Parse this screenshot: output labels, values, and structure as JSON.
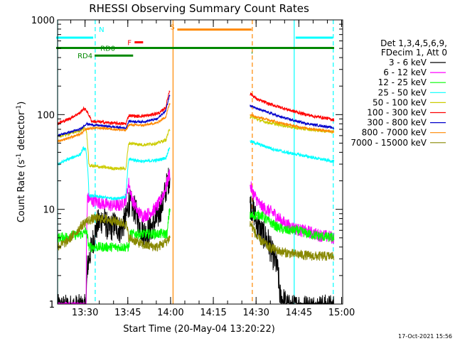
{
  "chart_data": {
    "type": "line",
    "title": "RHESSI Observing Summary Count Rates",
    "xlabel": "Start Time (20-May-04 13:20:22)",
    "ylabel": "Count Rate (s⁻¹ detector⁻¹)",
    "ylabel_main": "Count Rate (s",
    "ylabel_sup1": "-1",
    "ylabel_mid": " detector",
    "ylabel_sup2": "-1",
    "ylabel_end": ")",
    "x_axis": {
      "unit": "minutes since 13:20:22",
      "range": [
        0,
        100
      ],
      "ticks": [
        {
          "label": "13:30",
          "value": 9.63
        },
        {
          "label": "13:45",
          "value": 24.63
        },
        {
          "label": "14:00",
          "value": 39.63
        },
        {
          "label": "14:15",
          "value": 54.63
        },
        {
          "label": "14:30",
          "value": 69.63
        },
        {
          "label": "14:45",
          "value": 84.63
        },
        {
          "label": "15:00",
          "value": 99.63
        }
      ]
    },
    "y_axis": {
      "scale": "log",
      "range": [
        1,
        1000
      ],
      "ticks": [
        {
          "label": "1",
          "value": 1
        },
        {
          "label": "10",
          "value": 10
        },
        {
          "label": "100",
          "value": 100
        },
        {
          "label": "1000",
          "value": 1000
        }
      ]
    },
    "legend": {
      "placement": "right",
      "header": [
        "Det 1,3,4,5,6,9,",
        "FDecim 1, Att 0"
      ],
      "entries": [
        {
          "name": "3 - 6 keV",
          "color": "#000000"
        },
        {
          "name": "6 - 12 keV",
          "color": "#ff00ff"
        },
        {
          "name": "12 - 25 keV",
          "color": "#00ff00"
        },
        {
          "name": "25 - 50 keV",
          "color": "#00ffff"
        },
        {
          "name": "50 - 100 keV",
          "color": "#cccc00"
        },
        {
          "name": "100 - 300 keV",
          "color": "#ff0000"
        },
        {
          "name": "300 - 800 keV",
          "color": "#0000cc"
        },
        {
          "name": "800 - 7000 keV",
          "color": "#ff8800"
        },
        {
          "name": "7000 - 15000 keV",
          "color": "#888800"
        }
      ]
    },
    "segments": [
      [
        0,
        39.5
      ],
      [
        67.5,
        97
      ]
    ],
    "series": [
      {
        "name": "3 - 6 keV",
        "color": "#000000",
        "noise": 0.35,
        "points": [
          [
            0,
            0.9
          ],
          [
            10,
            0.9
          ],
          [
            10.5,
            2.5
          ],
          [
            12,
            4
          ],
          [
            14,
            7
          ],
          [
            16,
            8
          ],
          [
            18,
            6
          ],
          [
            20,
            7
          ],
          [
            22,
            6
          ],
          [
            24,
            8
          ],
          [
            25,
            12
          ],
          [
            27,
            10
          ],
          [
            29,
            6.5
          ],
          [
            31,
            5.5
          ],
          [
            33,
            6.5
          ],
          [
            35,
            8
          ],
          [
            37,
            12
          ],
          [
            39.3,
            22
          ],
          [
            67.8,
            11
          ],
          [
            69,
            9
          ],
          [
            70,
            7
          ],
          [
            71,
            6
          ],
          [
            73,
            5
          ],
          [
            74,
            4.5
          ],
          [
            75,
            3.5
          ],
          [
            77,
            2.5
          ],
          [
            78,
            1.2
          ],
          [
            81,
            0.9
          ],
          [
            97,
            0.9
          ]
        ]
      },
      {
        "name": "6 - 12 keV",
        "color": "#ff00ff",
        "noise": 0.16,
        "points": [
          [
            0,
            0.9
          ],
          [
            10,
            0.9
          ],
          [
            10.5,
            13
          ],
          [
            14,
            12
          ],
          [
            18,
            11
          ],
          [
            20,
            11
          ],
          [
            22,
            11
          ],
          [
            24,
            13
          ],
          [
            25,
            19
          ],
          [
            26,
            13
          ],
          [
            28,
            9.5
          ],
          [
            30,
            8.5
          ],
          [
            32,
            9
          ],
          [
            34,
            10
          ],
          [
            36,
            12
          ],
          [
            38,
            17
          ],
          [
            39.3,
            24
          ],
          [
            67.8,
            17
          ],
          [
            69,
            14
          ],
          [
            71,
            11
          ],
          [
            73,
            10
          ],
          [
            76,
            9
          ],
          [
            78,
            7.8
          ],
          [
            80,
            7
          ],
          [
            82,
            6.5
          ],
          [
            85,
            6
          ],
          [
            88,
            5.8
          ],
          [
            91,
            5.4
          ],
          [
            94,
            5.2
          ],
          [
            97,
            5
          ]
        ]
      },
      {
        "name": "12 - 25 keV",
        "color": "#00ff00",
        "noise": 0.12,
        "points": [
          [
            0,
            5
          ],
          [
            9,
            5.5
          ],
          [
            10,
            6
          ],
          [
            11,
            4
          ],
          [
            15,
            4
          ],
          [
            20,
            4
          ],
          [
            25,
            4
          ],
          [
            25.5,
            5.5
          ],
          [
            30,
            5.5
          ],
          [
            35,
            5.5
          ],
          [
            38.5,
            5.5
          ],
          [
            39.3,
            10
          ],
          [
            67.8,
            8.5
          ],
          [
            71,
            8.8
          ],
          [
            74,
            7.5
          ],
          [
            77,
            6.5
          ],
          [
            80,
            6
          ],
          [
            84,
            6
          ],
          [
            88,
            5.5
          ],
          [
            92,
            5.2
          ],
          [
            97,
            5
          ]
        ]
      },
      {
        "name": "25 - 50 keV",
        "color": "#00ffff",
        "noise": 0.04,
        "points": [
          [
            0,
            30
          ],
          [
            4,
            34
          ],
          [
            8,
            38
          ],
          [
            9,
            44
          ],
          [
            10,
            42
          ],
          [
            11,
            14
          ],
          [
            15,
            13.5
          ],
          [
            20,
            13
          ],
          [
            24,
            13.5
          ],
          [
            25,
            34
          ],
          [
            30,
            32
          ],
          [
            35,
            33
          ],
          [
            38,
            35
          ],
          [
            39.3,
            45
          ],
          [
            67.8,
            52
          ],
          [
            72,
            47
          ],
          [
            76,
            43
          ],
          [
            80,
            40
          ],
          [
            84,
            38
          ],
          [
            88,
            36
          ],
          [
            92,
            34
          ],
          [
            97,
            32
          ]
        ]
      },
      {
        "name": "50 - 100 keV",
        "color": "#cccc00",
        "noise": 0.04,
        "points": [
          [
            0,
            58
          ],
          [
            4,
            63
          ],
          [
            8,
            68
          ],
          [
            9,
            72
          ],
          [
            10,
            70
          ],
          [
            11,
            29
          ],
          [
            15,
            28
          ],
          [
            20,
            27
          ],
          [
            24,
            27
          ],
          [
            25,
            50
          ],
          [
            30,
            48
          ],
          [
            35,
            50
          ],
          [
            38,
            54
          ],
          [
            39.3,
            70
          ],
          [
            67.8,
            95
          ],
          [
            72,
            85
          ],
          [
            76,
            80
          ],
          [
            80,
            76
          ],
          [
            84,
            72
          ],
          [
            88,
            70
          ],
          [
            92,
            68
          ],
          [
            97,
            66
          ]
        ]
      },
      {
        "name": "100 - 300 keV",
        "color": "#ff0000",
        "noise": 0.04,
        "points": [
          [
            0,
            80
          ],
          [
            4,
            90
          ],
          [
            8,
            105
          ],
          [
            9,
            115
          ],
          [
            10,
            112
          ],
          [
            12,
            85
          ],
          [
            16,
            83
          ],
          [
            20,
            81
          ],
          [
            24,
            80
          ],
          [
            25,
            98
          ],
          [
            28,
            96
          ],
          [
            32,
            98
          ],
          [
            36,
            105
          ],
          [
            38,
            120
          ],
          [
            39.3,
            180
          ],
          [
            67.8,
            165
          ],
          [
            70,
            145
          ],
          [
            74,
            130
          ],
          [
            78,
            120
          ],
          [
            82,
            110
          ],
          [
            86,
            102
          ],
          [
            90,
            96
          ],
          [
            94,
            92
          ],
          [
            97,
            88
          ]
        ]
      },
      {
        "name": "300 - 800 keV",
        "color": "#0000cc",
        "noise": 0.03,
        "points": [
          [
            0,
            60
          ],
          [
            4,
            65
          ],
          [
            8,
            70
          ],
          [
            10,
            80
          ],
          [
            12,
            78
          ],
          [
            16,
            76
          ],
          [
            20,
            74
          ],
          [
            24,
            72
          ],
          [
            25,
            85
          ],
          [
            30,
            84
          ],
          [
            35,
            90
          ],
          [
            38,
            110
          ],
          [
            39.3,
            160
          ],
          [
            67.8,
            125
          ],
          [
            70,
            115
          ],
          [
            74,
            105
          ],
          [
            78,
            95
          ],
          [
            82,
            88
          ],
          [
            86,
            82
          ],
          [
            90,
            78
          ],
          [
            94,
            75
          ],
          [
            97,
            72
          ]
        ]
      },
      {
        "name": "800 - 7000 keV",
        "color": "#ff8800",
        "noise": 0.03,
        "points": [
          [
            0,
            52
          ],
          [
            4,
            57
          ],
          [
            8,
            62
          ],
          [
            10,
            70
          ],
          [
            12,
            72
          ],
          [
            16,
            72
          ],
          [
            20,
            70
          ],
          [
            24,
            68
          ],
          [
            25,
            78
          ],
          [
            30,
            77
          ],
          [
            35,
            82
          ],
          [
            38,
            95
          ],
          [
            39.3,
            130
          ],
          [
            67.8,
            100
          ],
          [
            70,
            95
          ],
          [
            74,
            88
          ],
          [
            78,
            82
          ],
          [
            82,
            77
          ],
          [
            86,
            73
          ],
          [
            90,
            70
          ],
          [
            94,
            68
          ],
          [
            97,
            66
          ]
        ]
      },
      {
        "name": "7000 - 15000 keV",
        "color": "#888800",
        "noise": 0.12,
        "points": [
          [
            0,
            4
          ],
          [
            3,
            4.5
          ],
          [
            6,
            5.5
          ],
          [
            8,
            6.5
          ],
          [
            10,
            7.5
          ],
          [
            13,
            8
          ],
          [
            16,
            8
          ],
          [
            20,
            7.5
          ],
          [
            24,
            7
          ],
          [
            25,
            5
          ],
          [
            30,
            4.2
          ],
          [
            35,
            4
          ],
          [
            38,
            4.5
          ],
          [
            39.3,
            5
          ],
          [
            67.8,
            7
          ],
          [
            70,
            5
          ],
          [
            74,
            4
          ],
          [
            78,
            3.6
          ],
          [
            82,
            3.4
          ],
          [
            86,
            3.3
          ],
          [
            90,
            3.2
          ],
          [
            94,
            3.2
          ],
          [
            97,
            3.2
          ]
        ]
      }
    ],
    "annotations": [
      {
        "label": "N",
        "color": "#00ffff",
        "bars": [
          [
            -0.5,
            12.5
          ],
          [
            83.5,
            96.5
          ]
        ],
        "bar_y": 650,
        "label_x": 14.5,
        "label_y": 800
      },
      {
        "label": "F",
        "color": "#ff0000",
        "bars": [
          [
            27,
            30
          ]
        ],
        "bar_y": 580,
        "label_x": 24.5,
        "label_y": 580
      },
      {
        "label": "RD0",
        "color": "#008800",
        "bars": [
          [
            -0.5,
            97
          ]
        ],
        "bar_y": 505,
        "label_x": 15,
        "label_y": 505
      },
      {
        "label": "RD4",
        "color": "#008800",
        "bars": [
          [
            13,
            26.5
          ]
        ],
        "bar_y": 420,
        "label_x": 7,
        "label_y": 420
      },
      {
        "label": "S",
        "color": "#ff8800",
        "bars": [
          [
            42,
            68
          ]
        ],
        "bar_y": 790,
        "label_x": 39.5,
        "label_y": 850
      }
    ],
    "vlines": [
      {
        "x": 0,
        "color": "#00ffff",
        "style": "solid"
      },
      {
        "x": 13.2,
        "color": "#00ffff",
        "style": "dashed"
      },
      {
        "x": 40.5,
        "color": "#ff8800",
        "style": "solid"
      },
      {
        "x": 68.3,
        "color": "#ff8800",
        "style": "dashed"
      },
      {
        "x": 83,
        "color": "#00ffff",
        "style": "solid"
      },
      {
        "x": 96.7,
        "color": "#00ffff",
        "style": "dashed"
      }
    ],
    "footer_timestamp": "17-Oct-2021 15:56"
  }
}
